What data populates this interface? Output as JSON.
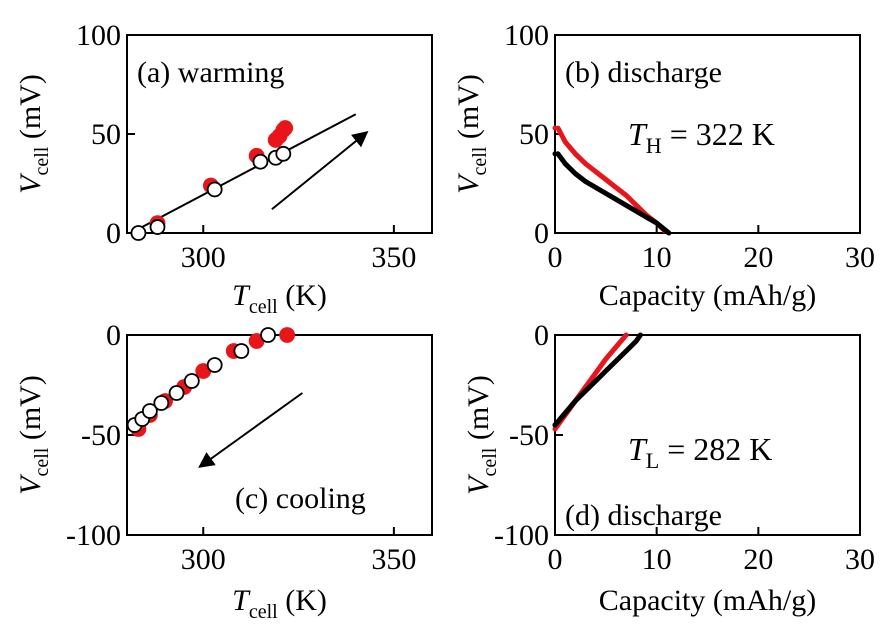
{
  "chart_data": [
    {
      "id": "a",
      "type": "scatter",
      "panel_label": "(a) warming",
      "xlabel": {
        "italic": "T",
        "sub": "cell",
        "unit": " (K)"
      },
      "ylabel": {
        "italic": "V",
        "sub": "cell",
        "unit": " (mV)"
      },
      "xlim": [
        280,
        360
      ],
      "ylim": [
        0,
        100
      ],
      "xticks": [
        300,
        350
      ],
      "yticks": [
        0,
        50,
        100
      ],
      "series": [
        {
          "color": "#e8161b",
          "fill": "#e8161b",
          "points": [
            [
              288,
              5
            ],
            [
              302,
              24
            ],
            [
              314,
              39
            ],
            [
              319,
              47
            ],
            [
              320,
              49
            ],
            [
              321,
              52
            ],
            [
              321.5,
              53
            ]
          ]
        },
        {
          "color": "#000000",
          "fill": "#ffffff",
          "points": [
            [
              283,
              0
            ],
            [
              288,
              3
            ],
            [
              303,
              22
            ],
            [
              315,
              36
            ],
            [
              319,
              38
            ],
            [
              321,
              40
            ]
          ]
        }
      ],
      "fit_line": [
        [
          281,
          0
        ],
        [
          340,
          60
        ]
      ],
      "arrow": {
        "from": [
          318,
          12
        ],
        "to": [
          343,
          51
        ]
      }
    },
    {
      "id": "b",
      "type": "line",
      "panel_label": "(b) discharge",
      "annotation": {
        "italic": "T",
        "sub": "H",
        "text": " = 322 K"
      },
      "xlabel": {
        "plain": "Capacity (mAh/g)"
      },
      "ylabel": {
        "italic": "V",
        "sub": "cell",
        "unit": " (mV)"
      },
      "xlim": [
        0,
        30
      ],
      "ylim": [
        0,
        100
      ],
      "xticks": [
        0,
        10,
        20,
        30
      ],
      "yticks": [
        0,
        50,
        100
      ],
      "series": [
        {
          "color": "#e8161b",
          "points": [
            [
              0.3,
              53
            ],
            [
              1,
              46
            ],
            [
              2,
              40
            ],
            [
              3,
              35
            ],
            [
              4,
              31
            ],
            [
              5,
              27
            ],
            [
              6,
              23
            ],
            [
              7,
              19
            ],
            [
              8,
              14
            ],
            [
              9,
              9
            ],
            [
              10,
              5
            ],
            [
              10.8,
              1
            ]
          ]
        },
        {
          "color": "#000000",
          "points": [
            [
              0.3,
              40
            ],
            [
              1,
              35
            ],
            [
              2,
              30
            ],
            [
              3,
              26
            ],
            [
              4,
              23
            ],
            [
              5,
              20
            ],
            [
              6,
              17
            ],
            [
              7,
              14
            ],
            [
              8,
              11
            ],
            [
              9,
              8
            ],
            [
              10,
              5
            ],
            [
              11.2,
              0
            ]
          ]
        }
      ]
    },
    {
      "id": "c",
      "type": "scatter",
      "panel_label": "(c) cooling",
      "xlabel": {
        "italic": "T",
        "sub": "cell",
        "unit": " (K)"
      },
      "ylabel": {
        "italic": "V",
        "sub": "cell",
        "unit": " (mV)"
      },
      "xlim": [
        280,
        360
      ],
      "ylim": [
        -100,
        0
      ],
      "xticks": [
        300,
        350
      ],
      "yticks": [
        -100,
        -50,
        0
      ],
      "series": [
        {
          "color": "#e8161b",
          "fill": "#e8161b",
          "points": [
            [
              283,
              -47
            ],
            [
              286,
              -40
            ],
            [
              290,
              -33
            ],
            [
              295,
              -26
            ],
            [
              300,
              -18
            ],
            [
              308,
              -8
            ],
            [
              314,
              -3
            ],
            [
              322,
              0
            ]
          ]
        },
        {
          "color": "#000000",
          "fill": "#ffffff",
          "points": [
            [
              282,
              -45
            ],
            [
              284,
              -42
            ],
            [
              286,
              -38
            ],
            [
              289,
              -34
            ],
            [
              293,
              -29
            ],
            [
              297,
              -23
            ],
            [
              303,
              -15
            ],
            [
              310,
              -8
            ],
            [
              317,
              0
            ]
          ]
        }
      ],
      "arrow": {
        "from": [
          326,
          -29
        ],
        "to": [
          299,
          -66
        ]
      }
    },
    {
      "id": "d",
      "type": "line",
      "panel_label": "(d) discharge",
      "annotation": {
        "italic": "T",
        "sub": "L",
        "text": " = 282 K"
      },
      "xlabel": {
        "plain": "Capacity (mAh/g)"
      },
      "ylabel": {
        "italic": "V",
        "sub": "cell",
        "unit": " (mV)"
      },
      "xlim": [
        0,
        30
      ],
      "ylim": [
        -100,
        0
      ],
      "xticks": [
        0,
        10,
        20,
        30
      ],
      "yticks": [
        -100,
        -50,
        0
      ],
      "series": [
        {
          "color": "#e8161b",
          "points": [
            [
              0,
              -47
            ],
            [
              1,
              -40
            ],
            [
              2,
              -33
            ],
            [
              3,
              -26
            ],
            [
              4,
              -19
            ],
            [
              5,
              -12
            ],
            [
              6,
              -6
            ],
            [
              7,
              0
            ]
          ]
        },
        {
          "color": "#000000",
          "points": [
            [
              0,
              -45
            ],
            [
              1,
              -39
            ],
            [
              2,
              -33
            ],
            [
              3,
              -28
            ],
            [
              4,
              -23
            ],
            [
              5,
              -18
            ],
            [
              6,
              -13
            ],
            [
              7,
              -8
            ],
            [
              8,
              -3
            ],
            [
              8.4,
              0
            ]
          ]
        }
      ]
    }
  ]
}
